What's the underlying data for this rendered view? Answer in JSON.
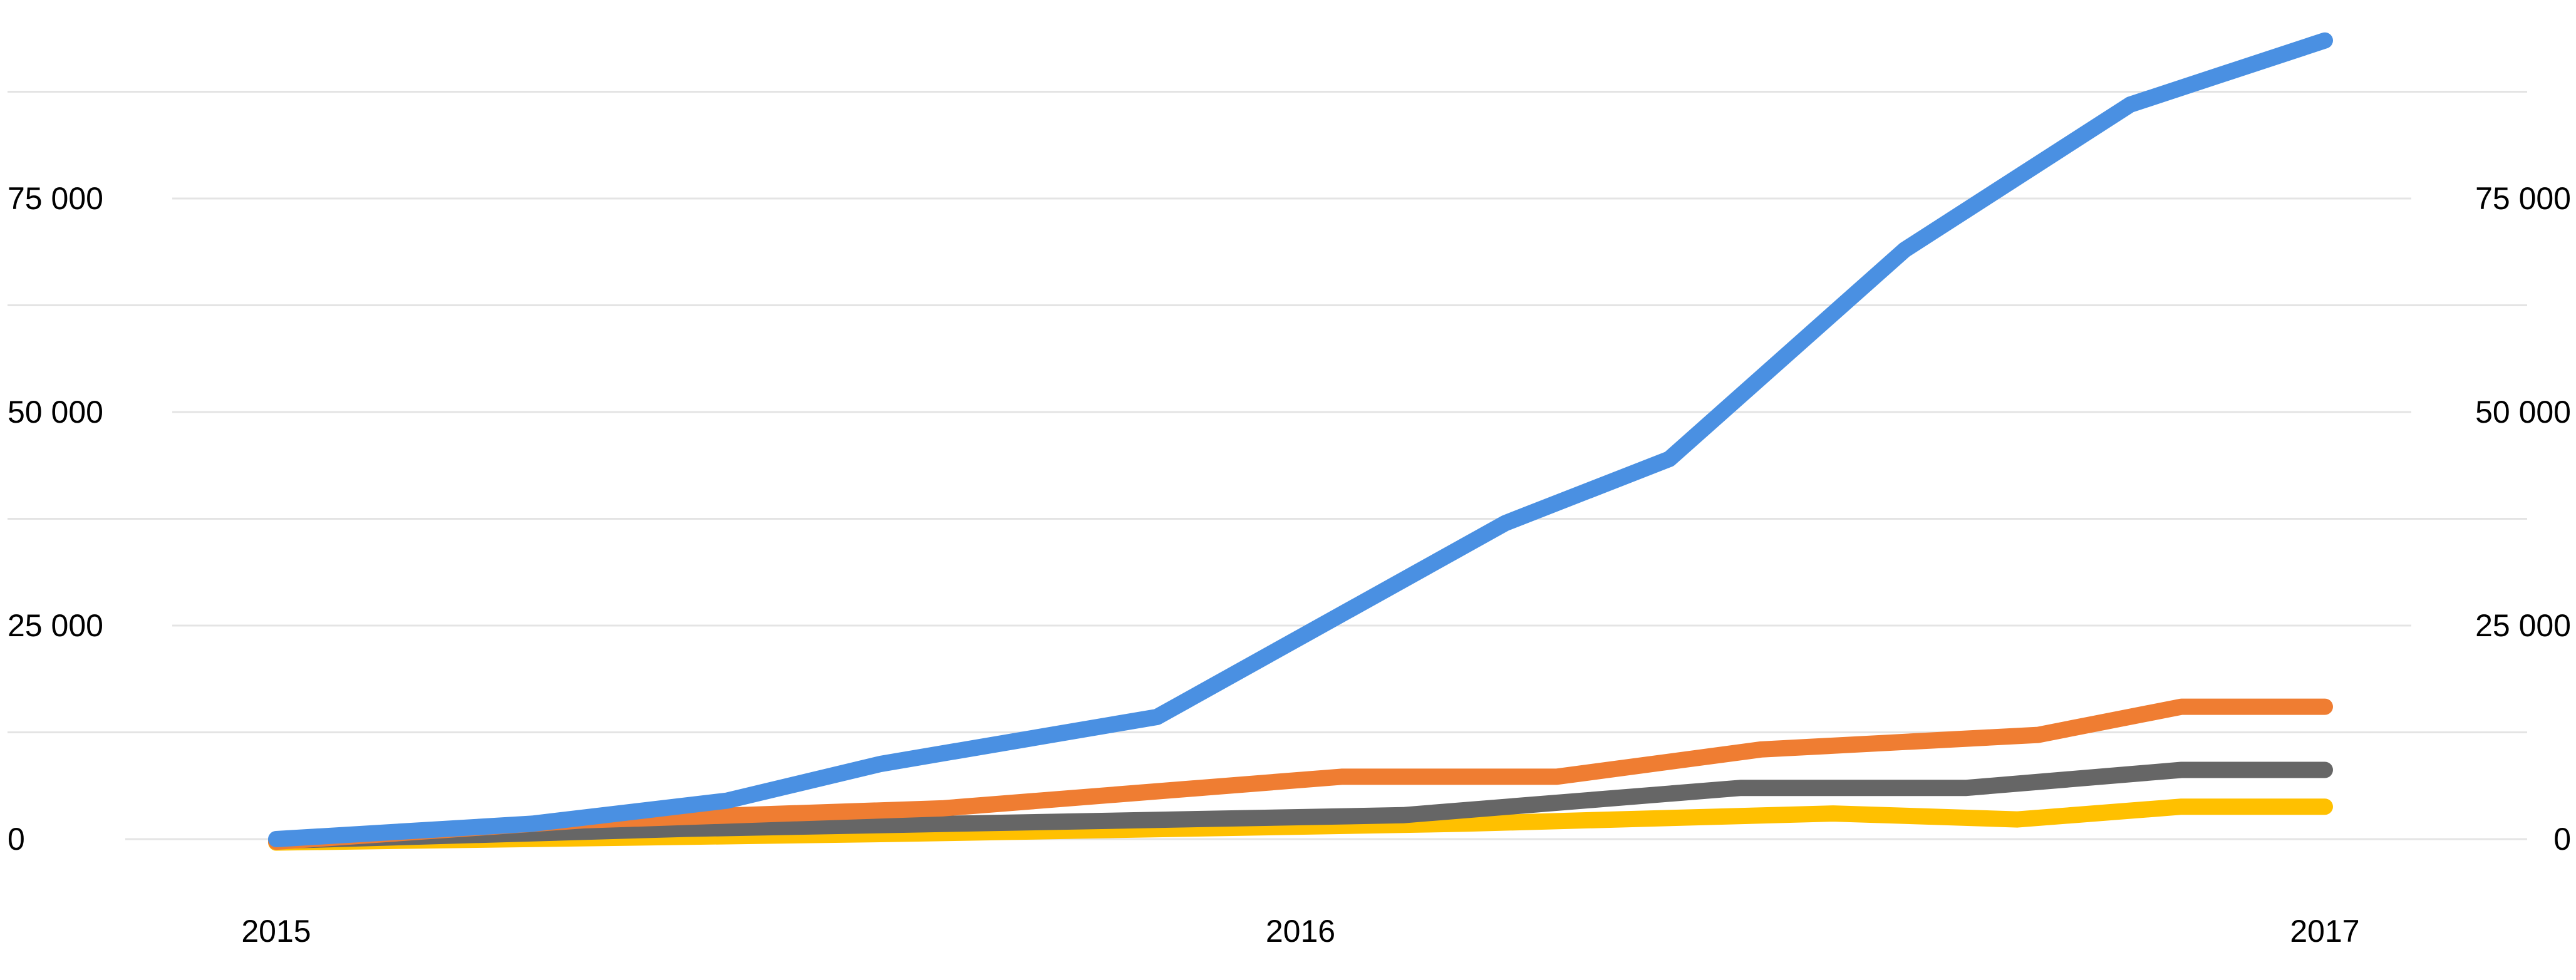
{
  "chart_data": {
    "type": "line",
    "title": "",
    "xlabel": "",
    "ylabel": "",
    "xlim": [
      2015.0,
      2017.0
    ],
    "ylim": [
      0,
      100000
    ],
    "y_ticks": [
      {
        "value": 0,
        "label": "0"
      },
      {
        "value": 25000,
        "label": "25 000"
      },
      {
        "value": 50000,
        "label": "50 000"
      },
      {
        "value": 75000,
        "label": "75 000"
      }
    ],
    "y_minor_grid": [
      12500,
      37500,
      62500,
      87500
    ],
    "x_ticks": [
      {
        "value": 2015,
        "label": "2015"
      },
      {
        "value": 2016,
        "label": "2016"
      },
      {
        "value": 2017,
        "label": "2017"
      }
    ],
    "grid": true,
    "legend": "none",
    "y_axis_labels_both_sides": true,
    "series": [
      {
        "color": "#4a90e2",
        "points": [
          [
            2015.0,
            0
          ],
          [
            2015.25,
            1800
          ],
          [
            2015.44,
            4500
          ],
          [
            2015.59,
            8800
          ],
          [
            2015.86,
            14300
          ],
          [
            2016.2,
            37000
          ],
          [
            2016.36,
            44500
          ],
          [
            2016.59,
            69000
          ],
          [
            2016.81,
            86000
          ],
          [
            2017.0,
            93500
          ]
        ]
      },
      {
        "color": "#ef7d32",
        "points": [
          [
            2015.0,
            -300
          ],
          [
            2015.3,
            2200
          ],
          [
            2015.65,
            3600
          ],
          [
            2016.04,
            7300
          ],
          [
            2016.25,
            7300
          ],
          [
            2016.45,
            10500
          ],
          [
            2016.72,
            12200
          ],
          [
            2016.86,
            15500
          ],
          [
            2017.0,
            15500
          ]
        ]
      },
      {
        "color": "#666666",
        "points": [
          [
            2015.0,
            -200
          ],
          [
            2015.4,
            1200
          ],
          [
            2016.1,
            2800
          ],
          [
            2016.43,
            6000
          ],
          [
            2016.65,
            6000
          ],
          [
            2016.86,
            8100
          ],
          [
            2017.0,
            8100
          ]
        ]
      },
      {
        "color": "#ffc000",
        "points": [
          [
            2015.0,
            -400
          ],
          [
            2015.6,
            600
          ],
          [
            2016.16,
            1800
          ],
          [
            2016.52,
            3000
          ],
          [
            2016.7,
            2300
          ],
          [
            2016.86,
            3800
          ],
          [
            2017.0,
            3800
          ]
        ]
      }
    ]
  }
}
